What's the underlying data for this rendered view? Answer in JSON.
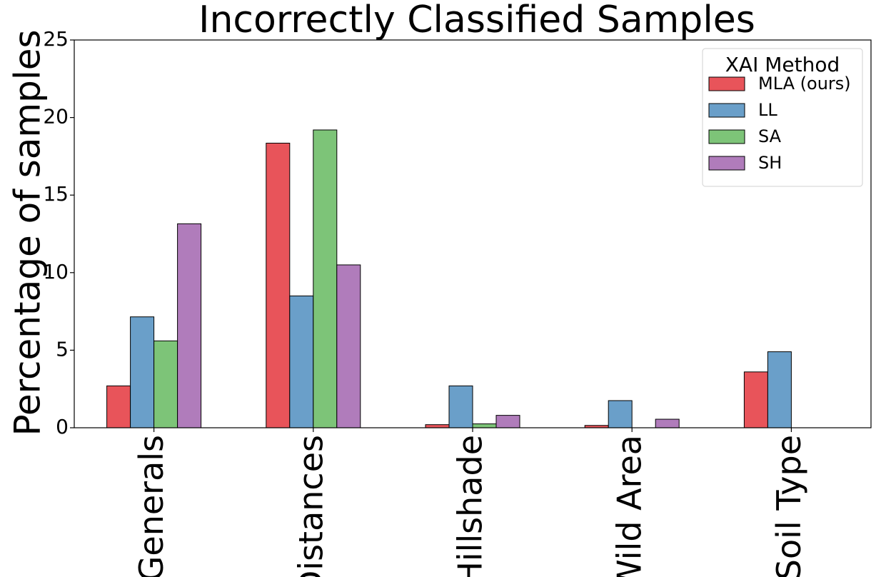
{
  "chart_data": {
    "type": "bar",
    "title": "Incorrectly Classified Samples",
    "xlabel": "",
    "ylabel": "Percentage of samples",
    "ylim": [
      0,
      25
    ],
    "yticks": [
      "0",
      "5",
      "10",
      "15",
      "20",
      "25"
    ],
    "categories": [
      "Generals",
      "Distances",
      "Hillshade",
      "Wild Area",
      "Soil Type"
    ],
    "legend_title": "XAI Method",
    "legend_position": "top-right",
    "grid": false,
    "series": [
      {
        "name": "MLA (ours)",
        "color": "#e8545a",
        "values": [
          2.7,
          18.35,
          0.2,
          0.15,
          3.6
        ]
      },
      {
        "name": "LL",
        "color": "#6a9fc9",
        "values": [
          7.15,
          8.5,
          2.7,
          1.75,
          4.9
        ]
      },
      {
        "name": "SA",
        "color": "#7dc478",
        "values": [
          5.6,
          19.2,
          0.25,
          0,
          0
        ]
      },
      {
        "name": "SH",
        "color": "#b07cbb",
        "values": [
          13.15,
          10.5,
          0.8,
          0.55,
          0
        ]
      }
    ]
  }
}
